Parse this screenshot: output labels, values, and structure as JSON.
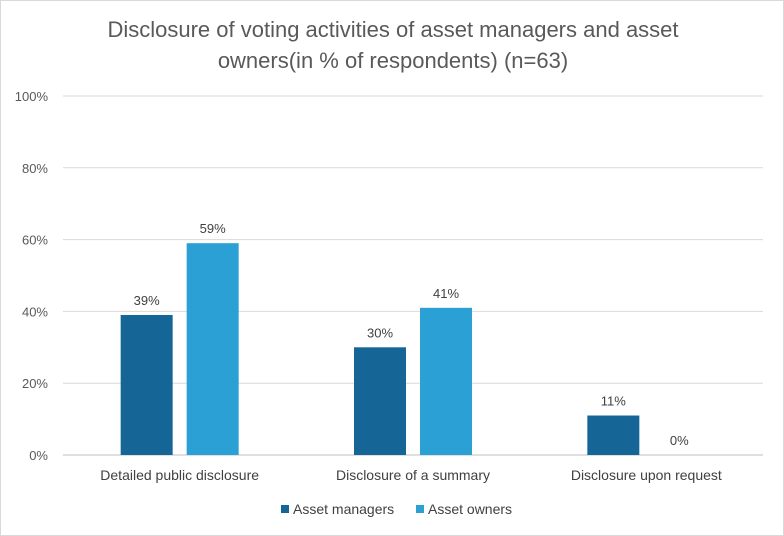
{
  "chart_data": {
    "type": "bar",
    "title_lines": [
      "Disclosure of voting activities of asset managers and asset",
      "owners(in % of respondents) (n=63)"
    ],
    "categories": [
      "Detailed public disclosure",
      "Disclosure of a summary",
      "Disclosure upon request"
    ],
    "series": [
      {
        "name": "Asset managers",
        "color": "#156697",
        "values": [
          39,
          30,
          11
        ],
        "labels": [
          "39%",
          "30%",
          "11%"
        ]
      },
      {
        "name": "Asset owners",
        "color": "#2aa0d5",
        "values": [
          59,
          41,
          0
        ],
        "labels": [
          "59%",
          "41%",
          "0%"
        ]
      }
    ],
    "ylim": [
      0,
      100
    ],
    "yticks": [
      0,
      20,
      40,
      60,
      80,
      100
    ],
    "ytick_labels": [
      "0%",
      "20%",
      "40%",
      "60%",
      "80%",
      "100%"
    ],
    "grid": true,
    "legend_position": "bottom"
  }
}
